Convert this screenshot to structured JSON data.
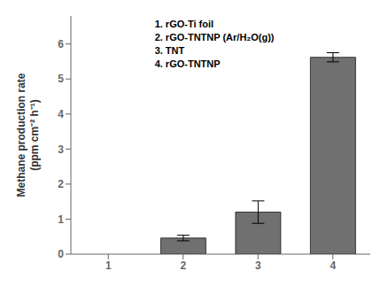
{
  "chart_data": {
    "type": "bar",
    "categories": [
      "1",
      "2",
      "3",
      "4"
    ],
    "values": [
      0.0,
      0.46,
      1.2,
      5.62
    ],
    "errors": [
      0.0,
      0.08,
      0.32,
      0.13
    ],
    "color": "#707070",
    "ylabel": "Methane production rate\n(ppm cm⁻² h⁻¹)",
    "ylim": [
      0,
      6.8
    ],
    "yticks": [
      0,
      1,
      2,
      3,
      4,
      5,
      6
    ],
    "annotations": [
      "1. rGO-Ti foil",
      "2. rGO-TNTNP (Ar/H₂O(g))",
      "3. TNT",
      "4. rGO-TNTNP"
    ]
  }
}
